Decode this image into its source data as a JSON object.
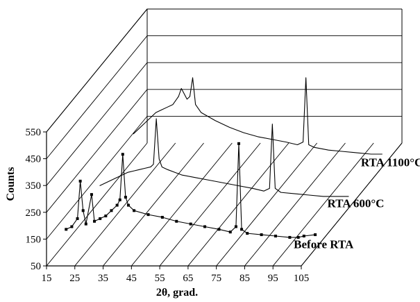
{
  "chart_data": {
    "type": "line",
    "title": "",
    "xlabel": "2θ, grad.",
    "ylabel": "Counts",
    "xlim": [
      15,
      105
    ],
    "ylim": [
      50,
      550
    ],
    "x_ticks": [
      "15",
      "25",
      "35",
      "45",
      "55",
      "65",
      "75",
      "85",
      "95",
      "105"
    ],
    "y_ticks": [
      "50",
      "150",
      "250",
      "350",
      "450",
      "550"
    ],
    "grid": true,
    "projection": "3d-stacked",
    "series": [
      {
        "name": "Before RTA",
        "marker": "square",
        "x": [
          16,
          18,
          20,
          21,
          22,
          23,
          25,
          26,
          28,
          30,
          32,
          34,
          35,
          36,
          37,
          38,
          40,
          45,
          50,
          55,
          60,
          65,
          70,
          74,
          76,
          77,
          78,
          80,
          85,
          90,
          95,
          98,
          100,
          104
        ],
        "values": [
          110,
          120,
          150,
          290,
          180,
          130,
          240,
          140,
          150,
          160,
          180,
          200,
          220,
          390,
          230,
          200,
          180,
          165,
          155,
          140,
          130,
          120,
          110,
          100,
          120,
          430,
          110,
          95,
          90,
          85,
          80,
          80,
          85,
          90
        ]
      },
      {
        "name": "RTA 600°C",
        "marker": "none",
        "x": [
          16,
          18,
          20,
          22,
          24,
          26,
          28,
          30,
          32,
          34,
          35,
          36,
          37,
          38,
          40,
          45,
          50,
          55,
          60,
          65,
          70,
          74,
          76,
          77,
          78,
          80,
          85,
          90,
          95,
          100,
          104
        ],
        "values": [
          120,
          130,
          140,
          150,
          160,
          170,
          175,
          180,
          185,
          190,
          200,
          370,
          220,
          190,
          180,
          160,
          150,
          140,
          130,
          120,
          110,
          100,
          110,
          350,
          110,
          95,
          90,
          85,
          80,
          80,
          80
        ]
      },
      {
        "name": "RTA 1100°C",
        "marker": "none",
        "x": [
          16,
          18,
          20,
          22,
          24,
          26,
          28,
          30,
          32,
          33,
          34,
          35,
          36,
          37,
          38,
          40,
          45,
          50,
          55,
          60,
          65,
          70,
          74,
          76,
          77,
          78,
          80,
          85,
          90,
          95,
          100,
          104
        ],
        "values": [
          160,
          180,
          200,
          220,
          240,
          250,
          260,
          270,
          300,
          330,
          310,
          290,
          300,
          370,
          270,
          240,
          210,
          185,
          165,
          150,
          140,
          130,
          120,
          130,
          370,
          120,
          110,
          100,
          95,
          90,
          85,
          85
        ]
      }
    ]
  }
}
